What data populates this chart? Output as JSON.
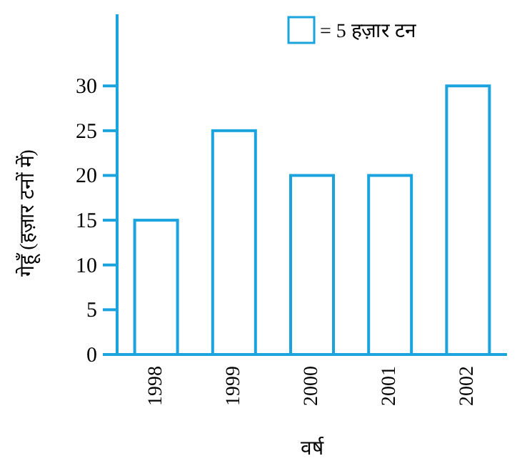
{
  "chart_data": {
    "type": "bar",
    "xlabel": "वर्ष",
    "ylabel": "गेहूँ (हज़ार टनों में)",
    "categories": [
      "1998",
      "1999",
      "2000",
      "2001",
      "2002"
    ],
    "values": [
      15,
      25,
      20,
      20,
      30
    ],
    "color": "#1aa3dc",
    "ylim": [
      0,
      38
    ],
    "yticks": [
      0,
      5,
      10,
      15,
      20,
      25,
      30
    ],
    "annotations": [
      "= 5 हज़ार टन"
    ]
  }
}
